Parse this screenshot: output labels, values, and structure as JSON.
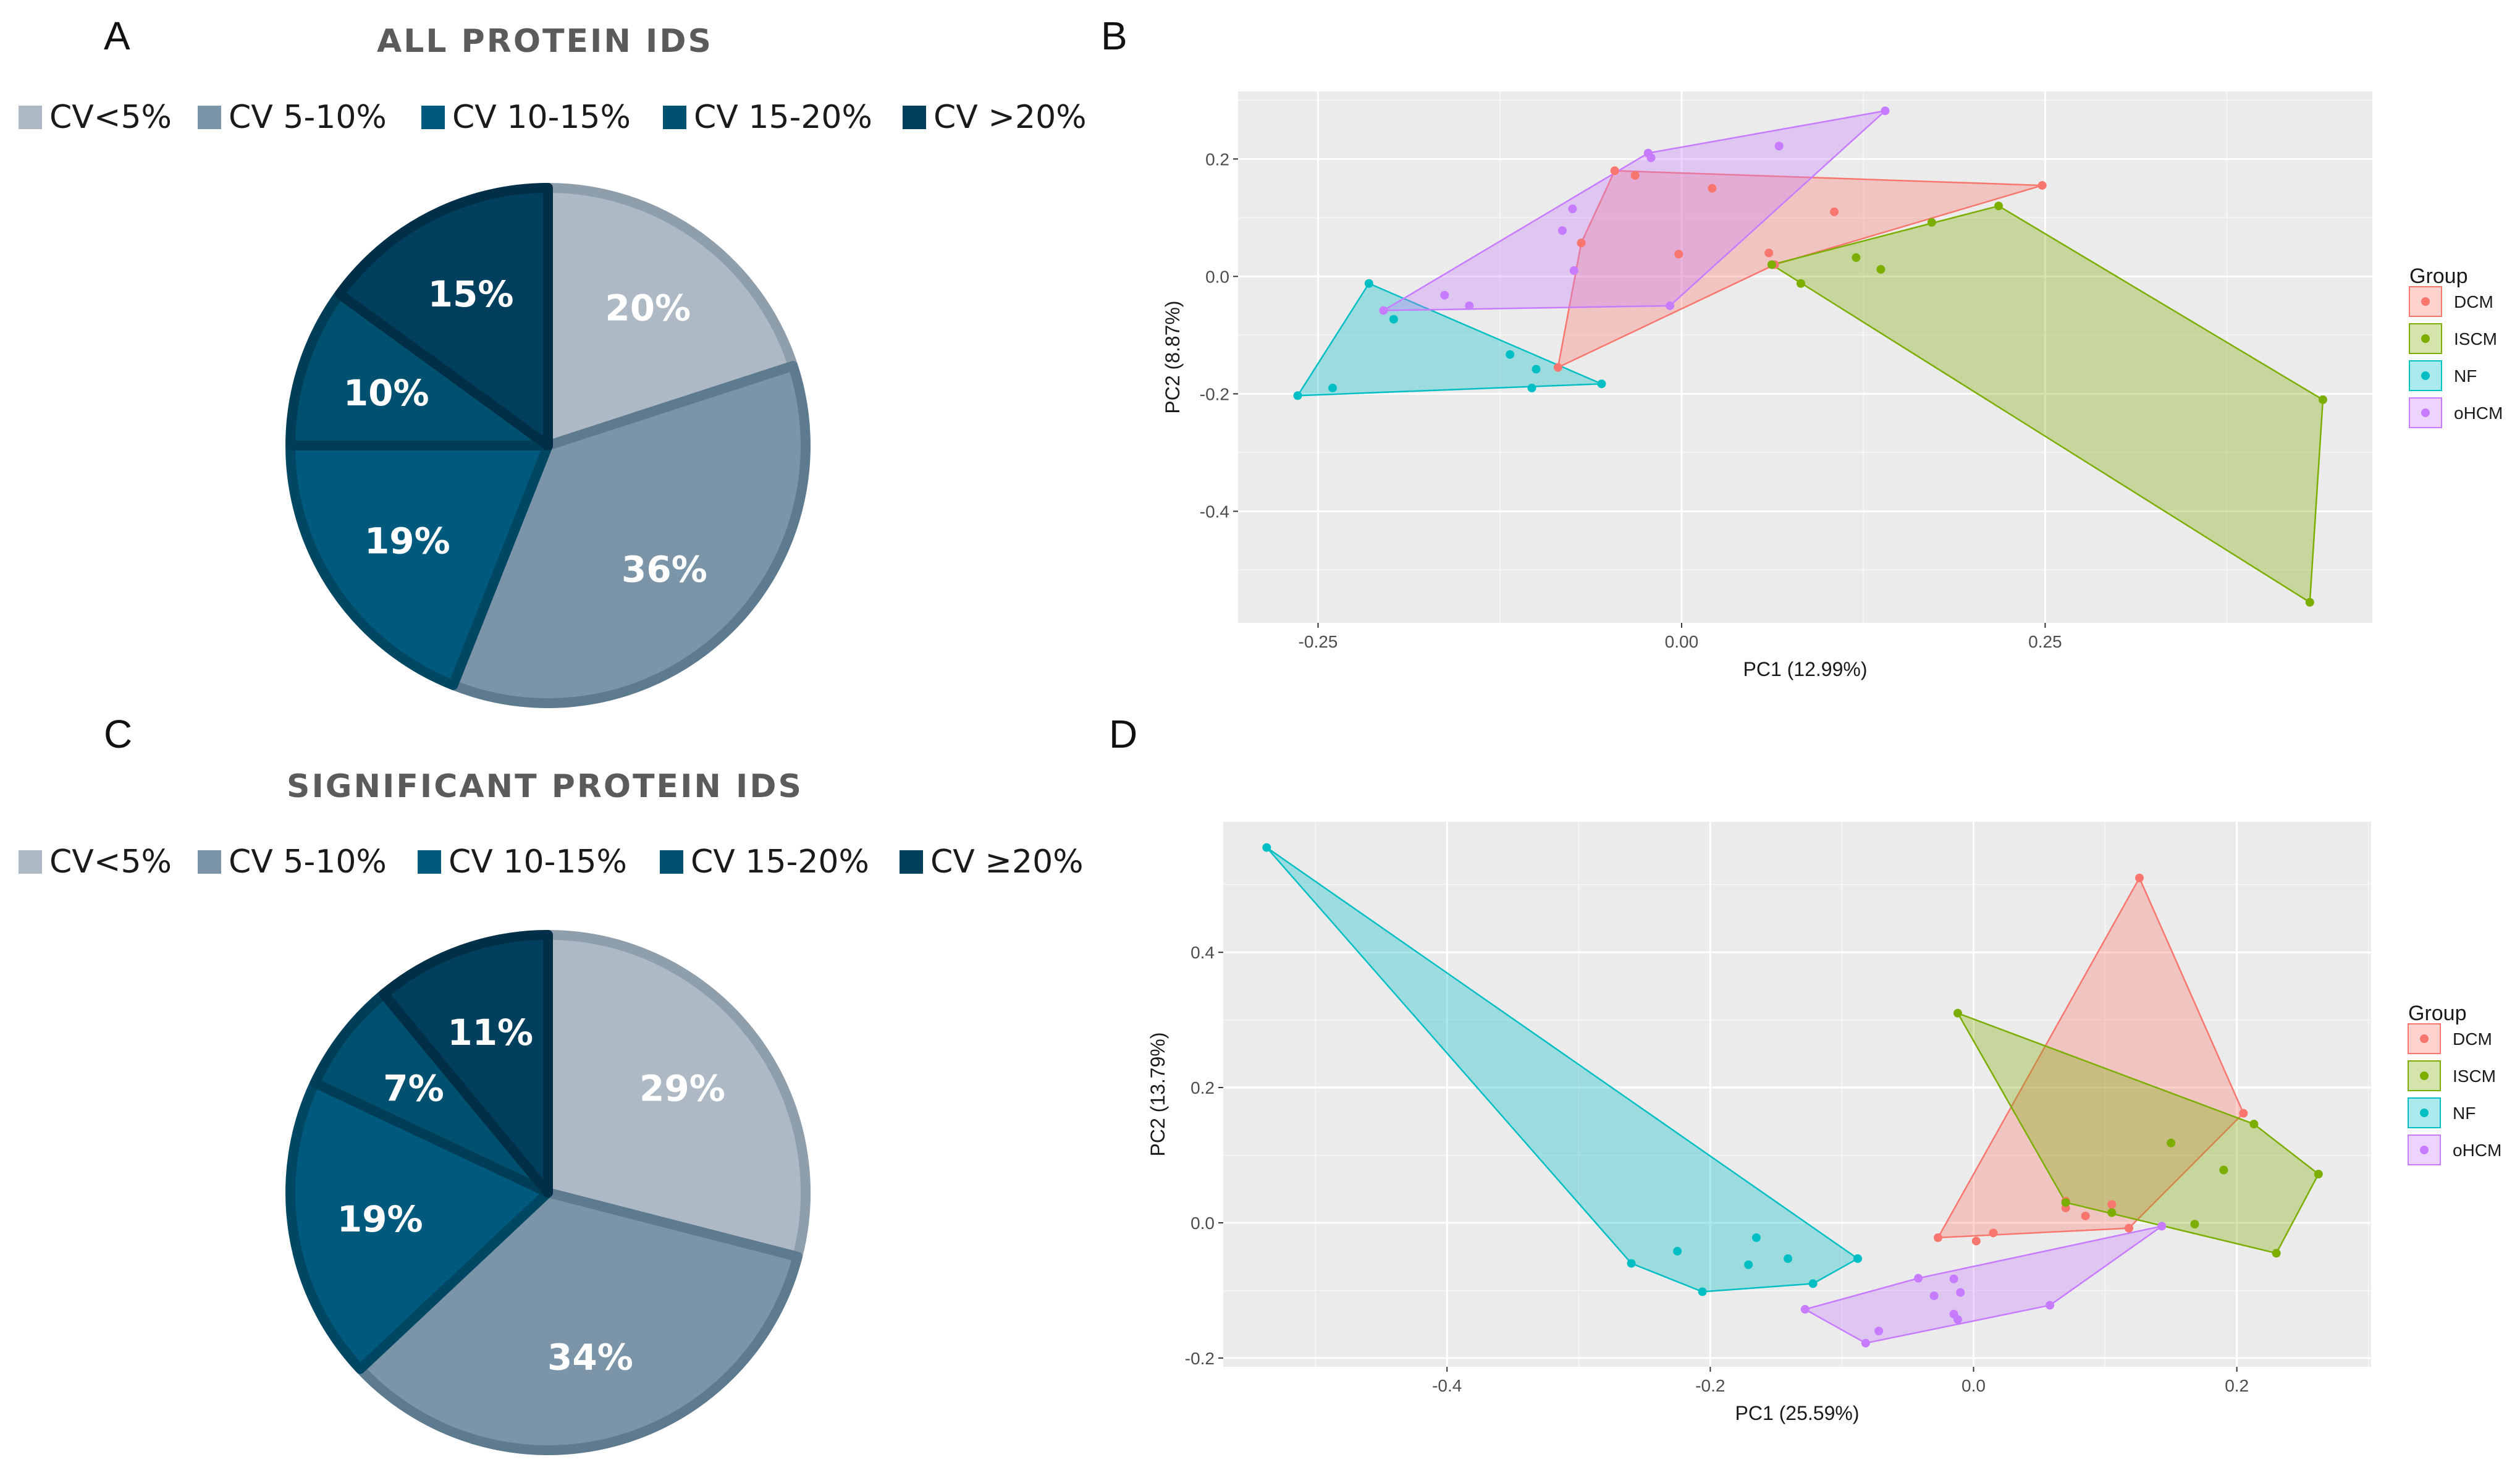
{
  "panels": {
    "a": "A",
    "b": "B",
    "c": "C",
    "d": "D"
  },
  "chart_data": [
    {
      "id": "A",
      "type": "pie",
      "title": "ALL PROTEIN IDS",
      "legend": [
        "CV<5%",
        "CV  5-10%",
        "CV 10-15%",
        "CV 15-20%",
        "CV >20%"
      ],
      "values": [
        20,
        36,
        19,
        10,
        15
      ],
      "labels": [
        "20%",
        "36%",
        "19%",
        "10%",
        "15%"
      ],
      "colors": [
        "#adb9c5",
        "#7b94a8",
        "#005a7e",
        "#00506f",
        "#003f5d"
      ],
      "edge_colors": [
        "#8f9eab",
        "#5e7a8f",
        "#004763",
        "#003e57",
        "#002f47"
      ]
    },
    {
      "id": "B",
      "type": "scatter",
      "xlabel": "PC1 (12.99%)",
      "ylabel": "PC2 (8.87%)",
      "xlim": [
        -0.305,
        0.475
      ],
      "ylim": [
        -0.59,
        0.315
      ],
      "xticks": [
        -0.25,
        0,
        0.25
      ],
      "xtick_labels": [
        "-0.25",
        "0.00",
        "0.25"
      ],
      "yticks": [
        -0.4,
        -0.2,
        0,
        0.2
      ],
      "ytick_labels": [
        "-0.4",
        "-0.2",
        "0.0",
        "0.2"
      ],
      "legend_title": "Group",
      "series": [
        {
          "name": "DCM",
          "color": "#f8766d",
          "points": [
            [
              -0.046,
              0.18
            ],
            [
              -0.032,
              0.172
            ],
            [
              0.021,
              0.15
            ],
            [
              0.105,
              0.11
            ],
            [
              0.248,
              0.155
            ],
            [
              -0.069,
              0.057
            ],
            [
              -0.002,
              0.038
            ],
            [
              0.06,
              0.04
            ],
            [
              0.064,
              0.02
            ],
            [
              -0.085,
              -0.155
            ]
          ],
          "hull": [
            [
              -0.046,
              0.18
            ],
            [
              0.248,
              0.155
            ],
            [
              0.064,
              0.02
            ],
            [
              -0.085,
              -0.155
            ],
            [
              -0.069,
              0.057
            ]
          ]
        },
        {
          "name": "ISCM",
          "color": "#7cae00",
          "points": [
            [
              0.218,
              0.12
            ],
            [
              0.172,
              0.092
            ],
            [
              0.12,
              0.032
            ],
            [
              0.137,
              0.012
            ],
            [
              0.062,
              0.02
            ],
            [
              0.082,
              -0.012
            ],
            [
              0.441,
              -0.21
            ],
            [
              0.432,
              -0.555
            ]
          ],
          "hull": [
            [
              0.218,
              0.12
            ],
            [
              0.441,
              -0.21
            ],
            [
              0.432,
              -0.555
            ],
            [
              0.062,
              0.02
            ]
          ]
        },
        {
          "name": "NF",
          "color": "#00bfc4",
          "points": [
            [
              -0.215,
              -0.012
            ],
            [
              -0.198,
              -0.073
            ],
            [
              -0.118,
              -0.133
            ],
            [
              -0.1,
              -0.158
            ],
            [
              -0.103,
              -0.19
            ],
            [
              -0.055,
              -0.183
            ],
            [
              -0.24,
              -0.19
            ],
            [
              -0.264,
              -0.203
            ]
          ],
          "hull": [
            [
              -0.215,
              -0.012
            ],
            [
              -0.055,
              -0.183
            ],
            [
              -0.264,
              -0.203
            ]
          ]
        },
        {
          "name": "oHCM",
          "color": "#c77cff",
          "points": [
            [
              0.14,
              0.282
            ],
            [
              0.067,
              0.222
            ],
            [
              -0.023,
              0.21
            ],
            [
              -0.021,
              0.202
            ],
            [
              -0.075,
              0.115
            ],
            [
              -0.082,
              0.078
            ],
            [
              -0.074,
              0.01
            ],
            [
              -0.163,
              -0.032
            ],
            [
              -0.146,
              -0.05
            ],
            [
              -0.205,
              -0.058
            ],
            [
              -0.008,
              -0.05
            ]
          ],
          "hull": [
            [
              -0.023,
              0.21
            ],
            [
              0.14,
              0.282
            ],
            [
              -0.008,
              -0.05
            ],
            [
              -0.205,
              -0.058
            ]
          ]
        }
      ]
    },
    {
      "id": "C",
      "type": "pie",
      "title": "SIGNIFICANT PROTEIN IDS",
      "legend": [
        "CV<5%",
        "CV 5-10%",
        "CV 10-15%",
        "CV 15-20%",
        "CV ≥20%"
      ],
      "values": [
        29,
        34,
        19,
        7,
        11
      ],
      "labels": [
        "29%",
        "34%",
        "19%",
        "7%",
        "11%"
      ],
      "colors": [
        "#adb9c5",
        "#7b94a8",
        "#005a7e",
        "#00506f",
        "#003f5d"
      ],
      "edge_colors": [
        "#8f9eab",
        "#5e7a8f",
        "#004763",
        "#003e57",
        "#002f47"
      ]
    },
    {
      "id": "D",
      "type": "scatter",
      "xlabel": "PC1 (25.59%)",
      "ylabel": "PC2 (13.79%)",
      "xlim": [
        -0.57,
        0.302
      ],
      "ylim": [
        -0.213,
        0.593
      ],
      "xticks": [
        -0.4,
        -0.2,
        0,
        0.2
      ],
      "xtick_labels": [
        "-0.4",
        "-0.2",
        "0.0",
        "0.2"
      ],
      "yticks": [
        -0.2,
        0,
        0.2,
        0.4
      ],
      "ytick_labels": [
        "-0.2",
        "0.0",
        "0.2",
        "0.4"
      ],
      "legend_title": "Group",
      "series": [
        {
          "name": "DCM",
          "color": "#f8766d",
          "points": [
            [
              0.126,
              0.51
            ],
            [
              0.205,
              0.162
            ],
            [
              0.07,
              0.032
            ],
            [
              0.105,
              0.027
            ],
            [
              0.07,
              0.022
            ],
            [
              0.085,
              0.01
            ],
            [
              0.118,
              -0.008
            ],
            [
              0.015,
              -0.015
            ],
            [
              -0.027,
              -0.022
            ],
            [
              0.002,
              -0.027
            ]
          ],
          "hull": [
            [
              0.126,
              0.51
            ],
            [
              0.205,
              0.162
            ],
            [
              0.118,
              -0.008
            ],
            [
              -0.027,
              -0.022
            ]
          ]
        },
        {
          "name": "ISCM",
          "color": "#7cae00",
          "points": [
            [
              -0.012,
              0.31
            ],
            [
              0.213,
              0.146
            ],
            [
              0.15,
              0.118
            ],
            [
              0.19,
              0.078
            ],
            [
              0.262,
              0.072
            ],
            [
              0.168,
              -0.002
            ],
            [
              0.23,
              -0.045
            ],
            [
              0.105,
              0.015
            ],
            [
              0.07,
              0.03
            ]
          ],
          "hull": [
            [
              -0.012,
              0.31
            ],
            [
              0.213,
              0.146
            ],
            [
              0.262,
              0.072
            ],
            [
              0.23,
              -0.045
            ],
            [
              0.07,
              0.03
            ]
          ]
        },
        {
          "name": "NF",
          "color": "#00bfc4",
          "points": [
            [
              -0.537,
              0.555
            ],
            [
              -0.088,
              -0.053
            ],
            [
              -0.165,
              -0.022
            ],
            [
              -0.141,
              -0.053
            ],
            [
              -0.225,
              -0.042
            ],
            [
              -0.26,
              -0.06
            ],
            [
              -0.171,
              -0.062
            ],
            [
              -0.122,
              -0.09
            ],
            [
              -0.206,
              -0.102
            ]
          ],
          "hull": [
            [
              -0.537,
              0.555
            ],
            [
              -0.088,
              -0.053
            ],
            [
              -0.122,
              -0.09
            ],
            [
              -0.206,
              -0.102
            ],
            [
              -0.26,
              -0.06
            ]
          ]
        },
        {
          "name": "oHCM",
          "color": "#c77cff",
          "points": [
            [
              0.143,
              -0.005
            ],
            [
              -0.042,
              -0.082
            ],
            [
              -0.015,
              -0.083
            ],
            [
              -0.01,
              -0.103
            ],
            [
              -0.03,
              -0.108
            ],
            [
              0.058,
              -0.122
            ],
            [
              -0.128,
              -0.128
            ],
            [
              -0.015,
              -0.135
            ],
            [
              -0.012,
              -0.143
            ],
            [
              -0.072,
              -0.16
            ],
            [
              -0.082,
              -0.178
            ]
          ],
          "hull": [
            [
              0.143,
              -0.005
            ],
            [
              0.058,
              -0.122
            ],
            [
              -0.082,
              -0.178
            ],
            [
              -0.128,
              -0.128
            ],
            [
              -0.042,
              -0.082
            ]
          ]
        }
      ]
    }
  ]
}
